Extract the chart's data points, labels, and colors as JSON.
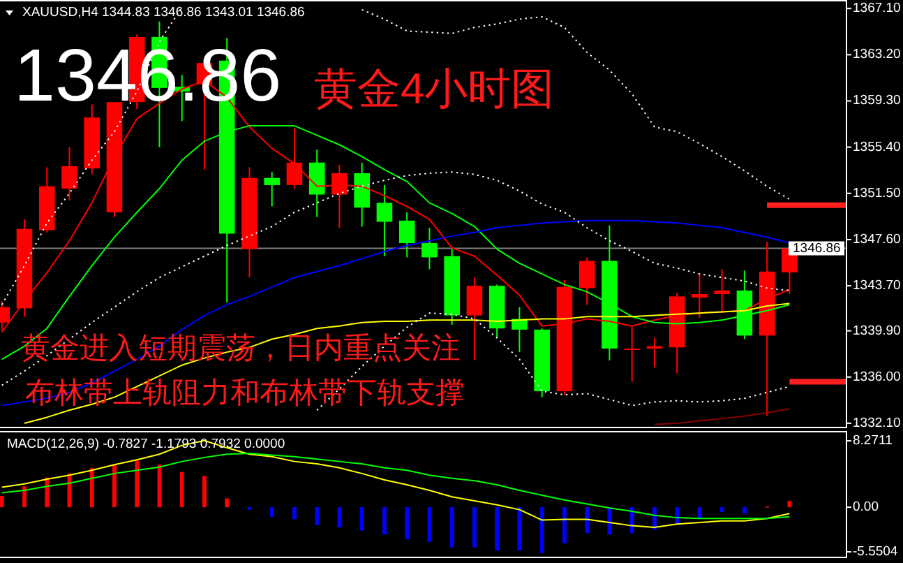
{
  "chart_data": [
    {
      "type": "candlestick",
      "title": "XAUUSD,H4 1344.83 1346.86 1343.01 1346.86",
      "annotations": [
        "1346.86",
        "黄金4小时图",
        "黄金进入短期震荡，日内重点关注",
        "布林带上轨阻力和布林带下轨支撑"
      ],
      "categories": [
        null,
        null,
        null,
        null,
        null,
        null,
        null,
        null,
        null,
        null,
        null,
        null,
        null,
        null,
        null,
        null,
        null,
        null,
        null,
        null,
        null,
        null,
        null,
        null,
        null,
        null,
        null,
        null,
        null,
        null,
        null,
        null,
        null,
        null,
        null,
        null,
        null,
        null
      ],
      "ohlc": [
        [
          1340.6,
          1342.4,
          1339.9,
          1341.9
        ],
        [
          1341.8,
          1349.3,
          1341.1,
          1348.5
        ],
        [
          1348.4,
          1353.7,
          1348.2,
          1352.1
        ],
        [
          1351.9,
          1355.4,
          1350.9,
          1353.8
        ],
        [
          1353.6,
          1359.0,
          1353.1,
          1357.9
        ],
        [
          1349.9,
          1359.2,
          1349.5,
          1359.2
        ],
        [
          1359.2,
          1364.9,
          1358.6,
          1364.7
        ],
        [
          1364.7,
          1366.0,
          1355.4,
          1360.4
        ],
        [
          1360.5,
          1361.5,
          1357.6,
          1360.1
        ],
        [
          1360.7,
          1362.5,
          1353.5,
          1362.5
        ],
        [
          1362.7,
          1364.6,
          1342.3,
          1348.1
        ],
        [
          1346.8,
          1353.7,
          1344.4,
          1352.8
        ],
        [
          1352.8,
          1353.3,
          1350.4,
          1352.2
        ],
        [
          1352.2,
          1357.0,
          1351.9,
          1354.1
        ],
        [
          1354.1,
          1355.2,
          1349.5,
          1351.4
        ],
        [
          1351.4,
          1353.9,
          1348.6,
          1353.2
        ],
        [
          1353.2,
          1354.1,
          1348.7,
          1350.3
        ],
        [
          1350.7,
          1352.2,
          1346.2,
          1349.1
        ],
        [
          1349.2,
          1349.9,
          1346.1,
          1347.3
        ],
        [
          1347.3,
          1348.6,
          1345.1,
          1346.1
        ],
        [
          1346.2,
          1346.8,
          1340.4,
          1341.2
        ],
        [
          1341.2,
          1344.4,
          1337.4,
          1343.7
        ],
        [
          1343.7,
          1343.8,
          1339.3,
          1340.1
        ],
        [
          1340.9,
          1341.9,
          1338.1,
          1340.0
        ],
        [
          1340.0,
          1340.1,
          1334.3,
          1334.8
        ],
        [
          1334.8,
          1344.2,
          1334.5,
          1343.6
        ],
        [
          1343.5,
          1346.1,
          1342.1,
          1345.8
        ],
        [
          1345.8,
          1348.8,
          1337.4,
          1338.4
        ],
        [
          1338.3,
          1340.3,
          1335.6,
          1338.4
        ],
        [
          1338.4,
          1339.3,
          1336.8,
          1338.6
        ],
        [
          1338.5,
          1343.1,
          1336.3,
          1342.8
        ],
        [
          1342.7,
          1344.7,
          1341.0,
          1343.0
        ],
        [
          1343.0,
          1345.1,
          1341.5,
          1343.3
        ],
        [
          1343.3,
          1345.0,
          1339.2,
          1339.5
        ],
        [
          1339.5,
          1347.4,
          1332.7,
          1344.9
        ],
        [
          1344.83,
          1346.86,
          1343.01,
          1346.86
        ],
        null,
        null
      ],
      "colors": [
        "#ff0000",
        "#ff0000",
        "#ff0000",
        "#ff0000",
        "#ff0000",
        "#ff0000",
        "#ff0000",
        "#00ff00",
        "#00ff00",
        "#ff0000",
        "#00ff00",
        "#ff0000",
        "#00ff00",
        "#ff0000",
        "#00ff00",
        "#ff0000",
        "#00ff00",
        "#00ff00",
        "#00ff00",
        "#00ff00",
        "#00ff00",
        "#ff0000",
        "#00ff00",
        "#00ff00",
        "#00ff00",
        "#ff0000",
        "#ff0000",
        "#00ff00",
        "#ff0000",
        "#ff0000",
        "#ff0000",
        "#ff0000",
        "#ff0000",
        "#00ff00",
        "#ff0000",
        "#ff0000",
        null,
        null
      ],
      "series": [
        {
          "type": "line",
          "color": "#ff0000",
          "values": [
            1339.8,
            1342.4,
            1344.8,
            1347.5,
            1350.7,
            1354.6,
            1357.8,
            1359.1,
            1360.3,
            1361.0,
            1359.6,
            1357.1,
            1355.3,
            1354.0,
            1352.1,
            1352.2,
            1352.1,
            1351.3,
            1350.4,
            1349.3,
            1346.9,
            1346.2,
            1344.6,
            1342.9,
            1340.3,
            1340.5,
            1340.9,
            1340.7,
            1340.3,
            1340.8,
            1341.2,
            1341.4,
            1341.5,
            1341.6,
            1342.6,
            1343.4,
            null,
            null
          ]
        },
        {
          "type": "line",
          "color": "#00ff00",
          "values": [
            1337.5,
            1338.6,
            1340.1,
            1342.8,
            1345.4,
            1347.8,
            1349.9,
            1351.9,
            1354.3,
            1355.9,
            1356.7,
            1357.2,
            1357.2,
            1357.2,
            1356.4,
            1355.6,
            1354.6,
            1353.5,
            1352.5,
            1350.7,
            1349.8,
            1348.7,
            1346.8,
            1345.6,
            1344.7,
            1343.8,
            1343.2,
            1342.2,
            1341.1,
            1340.6,
            1340.5,
            1340.6,
            1340.8,
            1341.2,
            1341.6,
            1342.1,
            null,
            null
          ]
        },
        {
          "type": "line",
          "color": "#0000ff",
          "values": [
            1333.6,
            1333.9,
            1334.2,
            1334.7,
            1335.5,
            1336.5,
            1337.5,
            1338.6,
            1340.0,
            1341.2,
            1342.1,
            1342.8,
            1343.6,
            1344.4,
            1344.9,
            1345.4,
            1346.0,
            1346.6,
            1347.1,
            1347.5,
            1347.9,
            1348.2,
            1348.6,
            1348.8,
            1349.0,
            1349.1,
            1349.2,
            1349.2,
            1349.2,
            1349.1,
            1349.0,
            1348.8,
            1348.6,
            1348.2,
            1347.8,
            1347.3,
            null,
            null
          ]
        },
        {
          "type": "line",
          "color": "#ffff00",
          "values": [
            null,
            1332.1,
            1332.6,
            1333.2,
            1333.7,
            1334.3,
            1335.2,
            1336.1,
            1337.0,
            1337.6,
            1338.1,
            1338.5,
            1339.2,
            1339.6,
            1340.1,
            1340.3,
            1340.6,
            1340.7,
            1340.7,
            1340.8,
            1340.8,
            1340.8,
            1340.7,
            1340.8,
            1340.9,
            1340.9,
            1341.1,
            1341.1,
            1341.1,
            1341.2,
            1341.3,
            1341.4,
            1341.5,
            1341.6,
            1342.0,
            1342.2,
            null,
            null
          ]
        },
        {
          "type": "line",
          "color": "#8b0000",
          "values": [
            null,
            null,
            null,
            null,
            null,
            null,
            null,
            null,
            null,
            null,
            null,
            null,
            null,
            null,
            null,
            null,
            null,
            null,
            null,
            null,
            null,
            null,
            null,
            null,
            null,
            null,
            null,
            null,
            null,
            1332.0,
            1332.1,
            1332.3,
            1332.5,
            1332.7,
            1333.0,
            1333.3,
            null,
            null
          ]
        },
        {
          "type": "line",
          "color": "#ffffff",
          "line_style": "dotted",
          "values": [
            1342.1,
            1345.4,
            1349.0,
            1351.5,
            1354.3,
            1356.7,
            1360.1,
            1364.3,
            1367.2,
            null,
            null,
            null,
            null,
            null,
            null,
            null,
            1367.0,
            1366.2,
            1365.2,
            1365.1,
            1365.0,
            1365.5,
            1365.8,
            1366.2,
            1366.4,
            1365.5,
            1363.4,
            1361.9,
            1359.9,
            1357.1,
            1356.7,
            1355.7,
            1354.6,
            1353.4,
            1352.1,
            1351.0,
            null,
            null
          ]
        },
        {
          "type": "line",
          "color": "#ffffff",
          "line_style": "dotted",
          "values": [
            1335.3,
            1336.5,
            1337.8,
            1339.2,
            1340.6,
            1341.9,
            1343.2,
            1344.4,
            1345.3,
            1346.2,
            1347.1,
            1347.9,
            1348.7,
            1349.9,
            1350.7,
            1351.5,
            1352.1,
            1352.6,
            1353.0,
            1353.2,
            1353.3,
            1353.1,
            1352.6,
            1351.7,
            1350.6,
            1349.9,
            1348.6,
            1347.5,
            1346.6,
            1345.6,
            1345.2,
            1344.7,
            1344.4,
            1344.1,
            1343.5,
            1343.3,
            null,
            null
          ]
        },
        {
          "type": "line",
          "color": "#ffffff",
          "line_style": "dotted",
          "values": [
            null,
            null,
            null,
            null,
            null,
            null,
            null,
            null,
            null,
            null,
            null,
            null,
            null,
            null,
            1333.2,
            1335.0,
            1336.9,
            1338.6,
            1340.2,
            1341.4,
            1341.3,
            1340.9,
            1339.3,
            1337.5,
            1334.8,
            1334.5,
            1334.6,
            1334.1,
            1333.6,
            1333.9,
            1334.0,
            1333.9,
            1334.0,
            1334.2,
            1334.7,
            1335.2,
            null,
            null
          ]
        },
        {
          "type": "step",
          "color": "#ff1f1f",
          "values": [
            null,
            null,
            null,
            null,
            null,
            null,
            null,
            null,
            null,
            null,
            null,
            null,
            null,
            null,
            null,
            null,
            null,
            null,
            null,
            null,
            null,
            null,
            null,
            null,
            null,
            null,
            null,
            null,
            null,
            null,
            null,
            null,
            null,
            null,
            1350.5,
            1350.5,
            1350.5,
            1350.5
          ]
        },
        {
          "type": "step",
          "color": "#ff1f1f",
          "values": [
            null,
            null,
            null,
            null,
            null,
            null,
            null,
            null,
            null,
            null,
            null,
            null,
            null,
            null,
            null,
            null,
            null,
            null,
            null,
            null,
            null,
            null,
            null,
            null,
            null,
            null,
            null,
            null,
            null,
            null,
            null,
            null,
            null,
            null,
            null,
            1335.6,
            1335.6,
            1335.6
          ]
        }
      ],
      "ref_lines": [
        {
          "axis": "y",
          "value": 1346.86,
          "label": "1346.86",
          "color": "#808080"
        }
      ],
      "ylim": [
        1331.8,
        1367.7
      ],
      "yticks": [
        {
          "value": 1367.1,
          "label": "1367.10"
        },
        {
          "value": 1363.2,
          "label": "1363.20"
        },
        {
          "value": 1359.3,
          "label": "1359.30"
        },
        {
          "value": 1355.4,
          "label": "1355.40"
        },
        {
          "value": 1351.5,
          "label": "1351.50"
        },
        {
          "value": 1347.6,
          "label": "1347.60"
        },
        {
          "value": 1343.7,
          "label": "1343.70"
        },
        {
          "value": 1339.9,
          "label": "1339.90"
        },
        {
          "value": 1336.0,
          "label": "1336.00"
        },
        {
          "value": 1332.1,
          "label": "1332.10"
        }
      ]
    },
    {
      "type": "bar",
      "title": "MACD(12,26,9) -0.7827 -1.1793 0.7932 0.0000",
      "categories": [
        null,
        null,
        null,
        null,
        null,
        null,
        null,
        null,
        null,
        null,
        null,
        null,
        null,
        null,
        null,
        null,
        null,
        null,
        null,
        null,
        null,
        null,
        null,
        null,
        null,
        null,
        null,
        null,
        null,
        null,
        null,
        null,
        null,
        null,
        null,
        null,
        null,
        null
      ],
      "series": [
        {
          "type": "bar",
          "values": [
            1.4,
            2.6,
            3.7,
            4.2,
            4.9,
            5.3,
            5.8,
            5.3,
            4.4,
            3.9,
            1.1,
            -0.3,
            -1.2,
            -1.5,
            -2.2,
            -2.5,
            -2.9,
            -3.4,
            -4.0,
            -4.3,
            -5.0,
            -5.0,
            -5.4,
            -5.4,
            -5.7,
            -4.5,
            -3.2,
            -3.4,
            -3.2,
            -2.8,
            -2.1,
            -1.4,
            -0.6,
            -0.8,
            0.1,
            0.7932,
            null,
            null
          ],
          "colors": [
            "#ff0000",
            "#ff0000",
            "#ff0000",
            "#ff0000",
            "#ff0000",
            "#ff0000",
            "#ff0000",
            "#ff0000",
            "#ff0000",
            "#ff0000",
            "#ff0000",
            "#0000ff",
            "#0000ff",
            "#0000ff",
            "#0000ff",
            "#0000ff",
            "#0000ff",
            "#0000ff",
            "#0000ff",
            "#0000ff",
            "#0000ff",
            "#0000ff",
            "#0000ff",
            "#0000ff",
            "#0000ff",
            "#0000ff",
            "#0000ff",
            "#0000ff",
            "#0000ff",
            "#0000ff",
            "#0000ff",
            "#0000ff",
            "#0000ff",
            "#0000ff",
            "#ff0000",
            "#ff0000",
            null,
            null
          ]
        },
        {
          "type": "line",
          "color": "#ffff00",
          "values": [
            2.5,
            2.9,
            3.5,
            4.0,
            4.6,
            5.3,
            5.9,
            6.6,
            7.7,
            8.3,
            7.4,
            6.6,
            6.3,
            5.7,
            5.4,
            4.9,
            4.2,
            3.4,
            2.8,
            2.1,
            1.3,
            0.8,
            0.3,
            -0.3,
            -1.6,
            -1.5,
            -1.5,
            -1.9,
            -2.3,
            -2.5,
            -2.1,
            -1.9,
            -1.7,
            -1.7,
            -1.4,
            -0.7827,
            null,
            null
          ]
        },
        {
          "type": "line",
          "color": "#00ff00",
          "values": [
            1.8,
            2.1,
            2.6,
            3.0,
            3.6,
            4.2,
            4.6,
            5.0,
            5.7,
            6.2,
            6.6,
            6.7,
            6.5,
            6.3,
            6.0,
            5.7,
            5.4,
            4.9,
            4.6,
            4.0,
            3.6,
            3.3,
            2.8,
            2.1,
            1.5,
            0.9,
            0.4,
            -0.1,
            -0.5,
            -1.0,
            -1.3,
            -1.4,
            -1.4,
            -1.4,
            -1.4,
            -1.1793,
            null,
            null
          ]
        }
      ],
      "ylim": [
        -6.16,
        9.32
      ],
      "yticks": [
        8.2711,
        {
          "value": 0,
          "label": "0.00"
        },
        -5.5504
      ]
    }
  ]
}
